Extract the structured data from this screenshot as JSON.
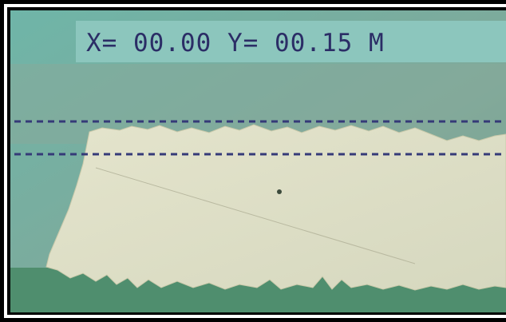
{
  "overlay": {
    "readout": "X= 00.00 Y= 00.15 M"
  }
}
